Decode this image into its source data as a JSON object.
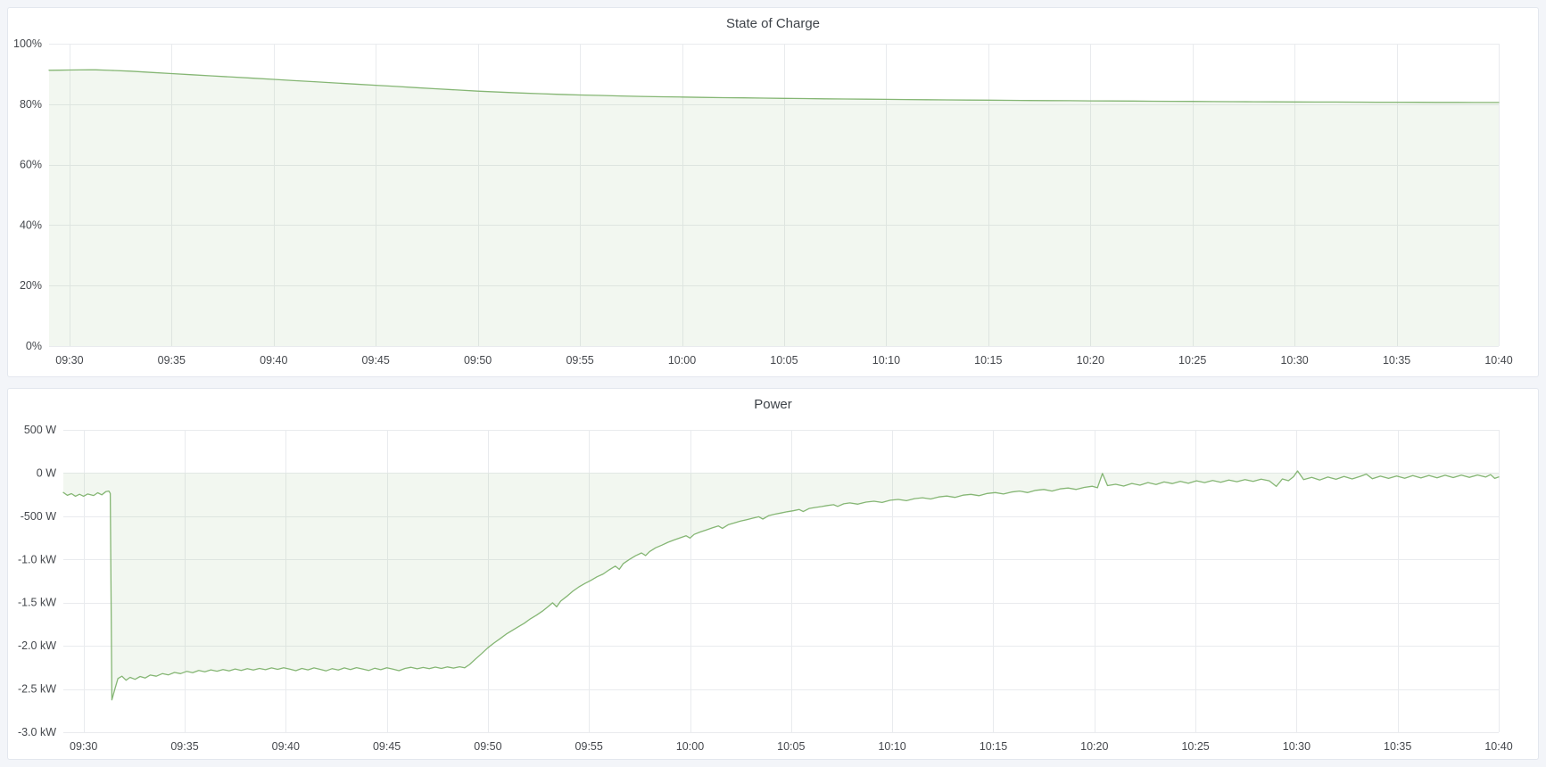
{
  "panels": [
    {
      "title": "State of Charge"
    },
    {
      "title": "Power"
    }
  ],
  "colors": {
    "page_bg": "#f3f5f9",
    "panel_bg": "#ffffff",
    "panel_border": "#e3e7ee",
    "title_text": "#3e4349",
    "axis_text": "#45484d",
    "gridline": "#e9ebee",
    "series_green": "#7eb26d",
    "fill_opacity": 0.1
  },
  "chart_data": [
    {
      "type": "area",
      "title": "State of Charge",
      "ylabel": "",
      "xlabel": "",
      "y_range": [
        0,
        100
      ],
      "x_range_minutes": [
        29,
        100
      ],
      "grid": true,
      "legend": "none",
      "baseline": 0,
      "y_ticks": [
        {
          "v": 0,
          "label": "0%"
        },
        {
          "v": 20,
          "label": "20%"
        },
        {
          "v": 40,
          "label": "40%"
        },
        {
          "v": 60,
          "label": "60%"
        },
        {
          "v": 80,
          "label": "80%"
        },
        {
          "v": 100,
          "label": "100%"
        }
      ],
      "x_ticks": [
        {
          "m": 30,
          "label": "09:30"
        },
        {
          "m": 35,
          "label": "09:35"
        },
        {
          "m": 40,
          "label": "09:40"
        },
        {
          "m": 45,
          "label": "09:45"
        },
        {
          "m": 50,
          "label": "09:50"
        },
        {
          "m": 55,
          "label": "09:55"
        },
        {
          "m": 60,
          "label": "10:00"
        },
        {
          "m": 65,
          "label": "10:05"
        },
        {
          "m": 70,
          "label": "10:10"
        },
        {
          "m": 75,
          "label": "10:15"
        },
        {
          "m": 80,
          "label": "10:20"
        },
        {
          "m": 85,
          "label": "10:25"
        },
        {
          "m": 90,
          "label": "10:30"
        },
        {
          "m": 95,
          "label": "10:35"
        },
        {
          "m": 100,
          "label": "10:40"
        }
      ],
      "points": [
        [
          29,
          91.2
        ],
        [
          29.5,
          91.25
        ],
        [
          30,
          91.3
        ],
        [
          30.5,
          91.32
        ],
        [
          31,
          91.35
        ],
        [
          31.3,
          91.35
        ],
        [
          31.7,
          91.28
        ],
        [
          32,
          91.18
        ],
        [
          33,
          90.9
        ],
        [
          34,
          90.5
        ],
        [
          35,
          90.12
        ],
        [
          36,
          89.74
        ],
        [
          37,
          89.36
        ],
        [
          38,
          88.97
        ],
        [
          39,
          88.58
        ],
        [
          40,
          88.2
        ],
        [
          41,
          87.8
        ],
        [
          42,
          87.42
        ],
        [
          43,
          87.03
        ],
        [
          44,
          86.64
        ],
        [
          45,
          86.25
        ],
        [
          46,
          85.86
        ],
        [
          47,
          85.47
        ],
        [
          48,
          85.08
        ],
        [
          49,
          84.7
        ],
        [
          50,
          84.32
        ],
        [
          51,
          84.0
        ],
        [
          52,
          83.72
        ],
        [
          53,
          83.47
        ],
        [
          54,
          83.25
        ],
        [
          55,
          83.05
        ],
        [
          56,
          82.88
        ],
        [
          57,
          82.72
        ],
        [
          58,
          82.58
        ],
        [
          59,
          82.46
        ],
        [
          60,
          82.35
        ],
        [
          61,
          82.25
        ],
        [
          62,
          82.16
        ],
        [
          63,
          82.08
        ],
        [
          64,
          82.0
        ],
        [
          65,
          81.92
        ],
        [
          66,
          81.85
        ],
        [
          67,
          81.78
        ],
        [
          68,
          81.71
        ],
        [
          69,
          81.65
        ],
        [
          70,
          81.59
        ],
        [
          71,
          81.53
        ],
        [
          72,
          81.47
        ],
        [
          73,
          81.42
        ],
        [
          74,
          81.37
        ],
        [
          75,
          81.32
        ],
        [
          76,
          81.27
        ],
        [
          77,
          81.22
        ],
        [
          78,
          81.18
        ],
        [
          79,
          81.14
        ],
        [
          80,
          81.1
        ],
        [
          81,
          81.06
        ],
        [
          82,
          81.02
        ],
        [
          83,
          80.98
        ],
        [
          84,
          80.94
        ],
        [
          85,
          80.9
        ],
        [
          86,
          80.87
        ],
        [
          87,
          80.84
        ],
        [
          88,
          80.81
        ],
        [
          89,
          80.78
        ],
        [
          90,
          80.75
        ],
        [
          91,
          80.72
        ],
        [
          92,
          80.7
        ],
        [
          93,
          80.68
        ],
        [
          94,
          80.66
        ],
        [
          95,
          80.64
        ],
        [
          96,
          80.62
        ],
        [
          97,
          80.6
        ],
        [
          98,
          80.58
        ],
        [
          99,
          80.56
        ],
        [
          100,
          80.55
        ]
      ]
    },
    {
      "type": "area",
      "title": "Power",
      "ylabel": "",
      "xlabel": "",
      "y_range": [
        -3000,
        500
      ],
      "x_range_minutes": [
        29,
        100
      ],
      "grid": true,
      "legend": "none",
      "baseline": 0,
      "y_ticks": [
        {
          "v": 500,
          "label": "500 W"
        },
        {
          "v": 0,
          "label": "0 W"
        },
        {
          "v": -500,
          "label": "-500 W"
        },
        {
          "v": -1000,
          "label": "-1.0 kW"
        },
        {
          "v": -1500,
          "label": "-1.5 kW"
        },
        {
          "v": -2000,
          "label": "-2.0 kW"
        },
        {
          "v": -2500,
          "label": "-2.5 kW"
        },
        {
          "v": -3000,
          "label": "-3.0 kW"
        }
      ],
      "x_ticks": [
        {
          "m": 30,
          "label": "09:30"
        },
        {
          "m": 35,
          "label": "09:35"
        },
        {
          "m": 40,
          "label": "09:40"
        },
        {
          "m": 45,
          "label": "09:45"
        },
        {
          "m": 50,
          "label": "09:50"
        },
        {
          "m": 55,
          "label": "09:55"
        },
        {
          "m": 60,
          "label": "10:00"
        },
        {
          "m": 65,
          "label": "10:05"
        },
        {
          "m": 70,
          "label": "10:10"
        },
        {
          "m": 75,
          "label": "10:15"
        },
        {
          "m": 80,
          "label": "10:20"
        },
        {
          "m": 85,
          "label": "10:25"
        },
        {
          "m": 90,
          "label": "10:30"
        },
        {
          "m": 95,
          "label": "10:35"
        },
        {
          "m": 100,
          "label": "10:40"
        }
      ],
      "points": [
        [
          29,
          -225
        ],
        [
          29.2,
          -258
        ],
        [
          29.4,
          -238
        ],
        [
          29.6,
          -268
        ],
        [
          29.8,
          -245
        ],
        [
          30,
          -268
        ],
        [
          30.2,
          -242
        ],
        [
          30.5,
          -260
        ],
        [
          30.7,
          -228
        ],
        [
          30.9,
          -252
        ],
        [
          31.1,
          -215
        ],
        [
          31.25,
          -208
        ],
        [
          31.32,
          -235
        ],
        [
          31.4,
          -2625
        ],
        [
          31.55,
          -2500
        ],
        [
          31.7,
          -2378
        ],
        [
          31.9,
          -2352
        ],
        [
          32.1,
          -2398
        ],
        [
          32.3,
          -2365
        ],
        [
          32.55,
          -2388
        ],
        [
          32.8,
          -2355
        ],
        [
          33.05,
          -2372
        ],
        [
          33.3,
          -2338
        ],
        [
          33.6,
          -2352
        ],
        [
          33.9,
          -2322
        ],
        [
          34.2,
          -2336
        ],
        [
          34.5,
          -2308
        ],
        [
          34.8,
          -2322
        ],
        [
          35.1,
          -2296
        ],
        [
          35.4,
          -2310
        ],
        [
          35.7,
          -2286
        ],
        [
          36,
          -2300
        ],
        [
          36.3,
          -2278
        ],
        [
          36.6,
          -2294
        ],
        [
          36.9,
          -2274
        ],
        [
          37.2,
          -2290
        ],
        [
          37.5,
          -2268
        ],
        [
          37.8,
          -2284
        ],
        [
          38.1,
          -2264
        ],
        [
          38.4,
          -2280
        ],
        [
          38.7,
          -2262
        ],
        [
          39,
          -2276
        ],
        [
          39.3,
          -2256
        ],
        [
          39.6,
          -2272
        ],
        [
          39.9,
          -2254
        ],
        [
          40.2,
          -2270
        ],
        [
          40.5,
          -2288
        ],
        [
          40.8,
          -2262
        ],
        [
          41.1,
          -2278
        ],
        [
          41.4,
          -2256
        ],
        [
          41.7,
          -2272
        ],
        [
          42,
          -2290
        ],
        [
          42.3,
          -2264
        ],
        [
          42.6,
          -2280
        ],
        [
          42.9,
          -2256
        ],
        [
          43.2,
          -2274
        ],
        [
          43.5,
          -2252
        ],
        [
          43.8,
          -2268
        ],
        [
          44.1,
          -2286
        ],
        [
          44.4,
          -2260
        ],
        [
          44.7,
          -2276
        ],
        [
          45,
          -2254
        ],
        [
          45.3,
          -2270
        ],
        [
          45.6,
          -2288
        ],
        [
          45.9,
          -2262
        ],
        [
          46.2,
          -2248
        ],
        [
          46.5,
          -2266
        ],
        [
          46.8,
          -2250
        ],
        [
          47.1,
          -2265
        ],
        [
          47.4,
          -2246
        ],
        [
          47.7,
          -2262
        ],
        [
          48,
          -2244
        ],
        [
          48.3,
          -2258
        ],
        [
          48.6,
          -2242
        ],
        [
          48.85,
          -2255
        ],
        [
          49.1,
          -2215
        ],
        [
          49.4,
          -2150
        ],
        [
          49.7,
          -2088
        ],
        [
          50,
          -2022
        ],
        [
          50.3,
          -1968
        ],
        [
          50.6,
          -1918
        ],
        [
          50.9,
          -1865
        ],
        [
          51.2,
          -1822
        ],
        [
          51.5,
          -1780
        ],
        [
          51.8,
          -1738
        ],
        [
          52.1,
          -1688
        ],
        [
          52.4,
          -1645
        ],
        [
          52.7,
          -1598
        ],
        [
          53,
          -1542
        ],
        [
          53.2,
          -1502
        ],
        [
          53.4,
          -1548
        ],
        [
          53.6,
          -1482
        ],
        [
          53.9,
          -1428
        ],
        [
          54.2,
          -1368
        ],
        [
          54.5,
          -1318
        ],
        [
          54.8,
          -1278
        ],
        [
          55.1,
          -1242
        ],
        [
          55.4,
          -1200
        ],
        [
          55.7,
          -1168
        ],
        [
          56,
          -1120
        ],
        [
          56.3,
          -1078
        ],
        [
          56.5,
          -1115
        ],
        [
          56.7,
          -1048
        ],
        [
          57,
          -1000
        ],
        [
          57.3,
          -958
        ],
        [
          57.6,
          -925
        ],
        [
          57.8,
          -955
        ],
        [
          58,
          -908
        ],
        [
          58.3,
          -865
        ],
        [
          58.6,
          -835
        ],
        [
          58.9,
          -802
        ],
        [
          59.2,
          -775
        ],
        [
          59.5,
          -750
        ],
        [
          59.8,
          -726
        ],
        [
          60,
          -752
        ],
        [
          60.2,
          -710
        ],
        [
          60.5,
          -682
        ],
        [
          60.8,
          -658
        ],
        [
          61.1,
          -635
        ],
        [
          61.4,
          -612
        ],
        [
          61.6,
          -640
        ],
        [
          61.9,
          -596
        ],
        [
          62.2,
          -576
        ],
        [
          62.5,
          -556
        ],
        [
          62.8,
          -540
        ],
        [
          63.1,
          -522
        ],
        [
          63.4,
          -506
        ],
        [
          63.6,
          -532
        ],
        [
          63.9,
          -492
        ],
        [
          64.2,
          -476
        ],
        [
          64.5,
          -462
        ],
        [
          64.8,
          -448
        ],
        [
          65.1,
          -436
        ],
        [
          65.4,
          -422
        ],
        [
          65.6,
          -446
        ],
        [
          65.9,
          -410
        ],
        [
          66.2,
          -398
        ],
        [
          66.5,
          -388
        ],
        [
          66.8,
          -376
        ],
        [
          67.1,
          -366
        ],
        [
          67.3,
          -386
        ],
        [
          67.6,
          -356
        ],
        [
          67.9,
          -346
        ],
        [
          68.3,
          -360
        ],
        [
          68.7,
          -336
        ],
        [
          69.1,
          -326
        ],
        [
          69.5,
          -340
        ],
        [
          69.9,
          -315
        ],
        [
          70.3,
          -305
        ],
        [
          70.7,
          -320
        ],
        [
          71.1,
          -296
        ],
        [
          71.5,
          -286
        ],
        [
          71.9,
          -300
        ],
        [
          72.3,
          -276
        ],
        [
          72.7,
          -266
        ],
        [
          73.1,
          -282
        ],
        [
          73.5,
          -256
        ],
        [
          73.9,
          -246
        ],
        [
          74.3,
          -262
        ],
        [
          74.7,
          -236
        ],
        [
          75.1,
          -226
        ],
        [
          75.5,
          -242
        ],
        [
          75.9,
          -220
        ],
        [
          76.3,
          -208
        ],
        [
          76.7,
          -226
        ],
        [
          77.1,
          -200
        ],
        [
          77.5,
          -190
        ],
        [
          77.9,
          -208
        ],
        [
          78.3,
          -183
        ],
        [
          78.7,
          -173
        ],
        [
          79.1,
          -190
        ],
        [
          79.5,
          -166
        ],
        [
          79.9,
          -152
        ],
        [
          80.15,
          -170
        ],
        [
          80.4,
          -5
        ],
        [
          80.65,
          -145
        ],
        [
          81.05,
          -130
        ],
        [
          81.45,
          -150
        ],
        [
          81.85,
          -120
        ],
        [
          82.25,
          -140
        ],
        [
          82.65,
          -110
        ],
        [
          83.05,
          -132
        ],
        [
          83.45,
          -103
        ],
        [
          83.85,
          -122
        ],
        [
          84.25,
          -96
        ],
        [
          84.65,
          -118
        ],
        [
          85.05,
          -90
        ],
        [
          85.45,
          -110
        ],
        [
          85.85,
          -86
        ],
        [
          86.25,
          -106
        ],
        [
          86.65,
          -80
        ],
        [
          87.05,
          -100
        ],
        [
          87.45,
          -76
        ],
        [
          87.85,
          -96
        ],
        [
          88.25,
          -70
        ],
        [
          88.65,
          -90
        ],
        [
          89,
          -155
        ],
        [
          89.3,
          -68
        ],
        [
          89.6,
          -88
        ],
        [
          89.85,
          -42
        ],
        [
          90.05,
          25
        ],
        [
          90.35,
          -76
        ],
        [
          90.75,
          -50
        ],
        [
          91.15,
          -80
        ],
        [
          91.55,
          -46
        ],
        [
          91.95,
          -72
        ],
        [
          92.35,
          -40
        ],
        [
          92.75,
          -68
        ],
        [
          93.15,
          -38
        ],
        [
          93.45,
          -12
        ],
        [
          93.75,
          -66
        ],
        [
          94.15,
          -36
        ],
        [
          94.55,
          -62
        ],
        [
          94.95,
          -34
        ],
        [
          95.35,
          -60
        ],
        [
          95.75,
          -30
        ],
        [
          96.15,
          -56
        ],
        [
          96.55,
          -28
        ],
        [
          96.95,
          -54
        ],
        [
          97.35,
          -26
        ],
        [
          97.75,
          -52
        ],
        [
          98.15,
          -24
        ],
        [
          98.55,
          -50
        ],
        [
          98.95,
          -22
        ],
        [
          99.35,
          -46
        ],
        [
          99.6,
          -18
        ],
        [
          99.8,
          -62
        ],
        [
          100,
          -45
        ]
      ]
    }
  ]
}
